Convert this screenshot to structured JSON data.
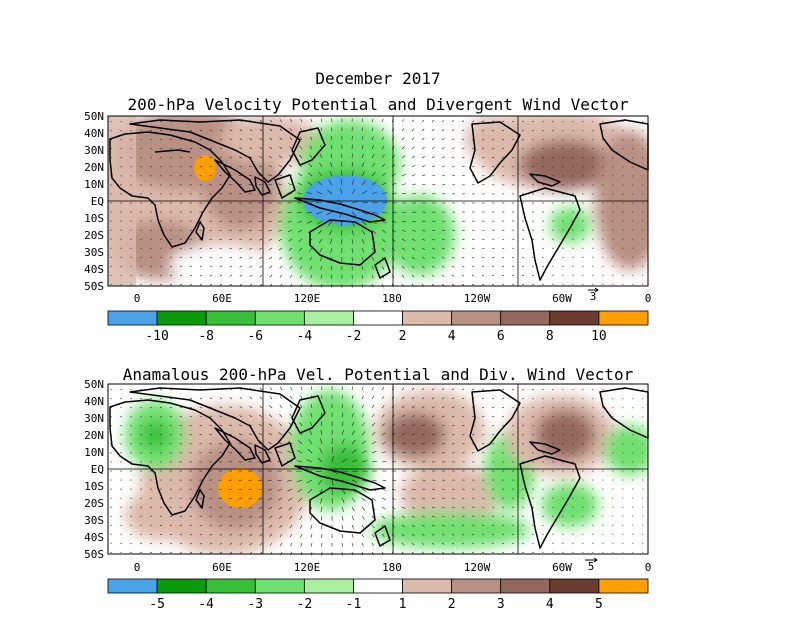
{
  "figure": {
    "title": "December 2017",
    "panels": [
      {
        "id": "top",
        "subtitle": "200-hPa Velocity Potential and Divergent Wind Vector",
        "lat_labels": [
          "50N",
          "40N",
          "30N",
          "20N",
          "10N",
          "EQ",
          "10S",
          "20S",
          "30S",
          "40S",
          "50S"
        ],
        "lon_labels": [
          "0",
          "60E",
          "120E",
          "180",
          "120W",
          "60W",
          "0"
        ],
        "vector_ref": "3",
        "colorbar": {
          "colors": [
            "#4aa3e8",
            "#0a9a0a",
            "#37bf37",
            "#6fe06f",
            "#a8f0a0",
            "#ffffff",
            "#dbb9ab",
            "#b99084",
            "#95685f",
            "#6b3c30",
            "#ff9f00"
          ],
          "labels": [
            "-10",
            "-8",
            "-6",
            "-4",
            "-2",
            "2",
            "4",
            "6",
            "8",
            "10"
          ]
        }
      },
      {
        "id": "bottom",
        "subtitle": "Anamalous 200-hPa Vel. Potential and Div. Wind Vector",
        "lat_labels": [
          "50N",
          "40N",
          "30N",
          "20N",
          "10N",
          "EQ",
          "10S",
          "20S",
          "30S",
          "40S",
          "50S"
        ],
        "lon_labels": [
          "0",
          "60E",
          "120E",
          "180",
          "120W",
          "60W",
          "0"
        ],
        "vector_ref": "5",
        "colorbar": {
          "colors": [
            "#4aa3e8",
            "#0a9a0a",
            "#37bf37",
            "#6fe06f",
            "#a8f0a0",
            "#ffffff",
            "#dbb9ab",
            "#b99084",
            "#95685f",
            "#6b3c30",
            "#ff9f00"
          ],
          "labels": [
            "-5",
            "-4",
            "-3",
            "-2",
            "-1",
            "1",
            "2",
            "3",
            "4",
            "5"
          ]
        }
      }
    ]
  }
}
